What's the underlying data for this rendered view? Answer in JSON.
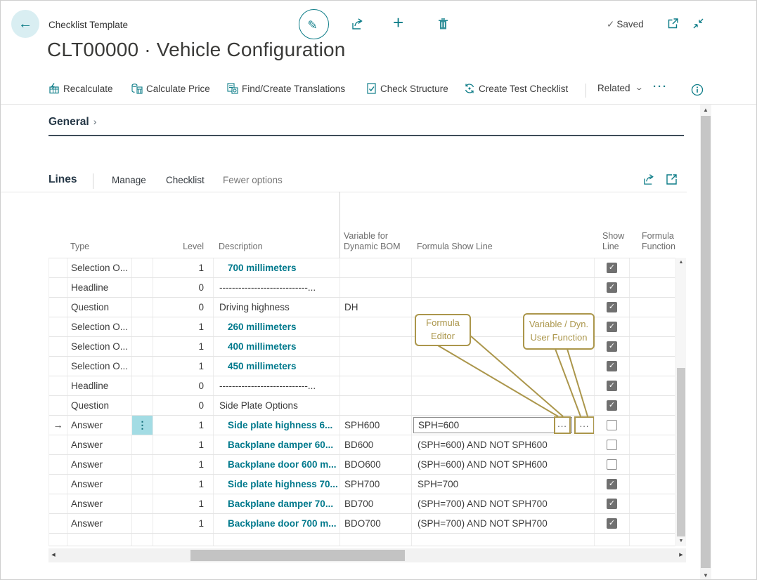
{
  "header": {
    "context": "Checklist Template",
    "title": "CLT00000 · Vehicle Configuration",
    "saved": "Saved",
    "saved_check": "✓"
  },
  "action_bar": {
    "items": [
      "Recalculate",
      "Calculate Price",
      "Find/Create Translations",
      "Check Structure",
      "Create Test Checklist"
    ],
    "related": "Related",
    "more": "···"
  },
  "general": {
    "label": "General"
  },
  "lines": {
    "title": "Lines",
    "menu": [
      "Manage",
      "Checklist"
    ],
    "fewer_options": "Fewer options"
  },
  "table": {
    "headers": {
      "type": "Type",
      "level": "Level",
      "description": "Description",
      "variable": "Variable for\nDynamic BOM",
      "formula": "Formula Show Line",
      "show": "Show\nLine",
      "function": "Formula\nFunction"
    },
    "rows": [
      {
        "type": "Selection O...",
        "level": "1",
        "desc": "700 millimeters",
        "link": true,
        "var": "",
        "formula": "",
        "show": true
      },
      {
        "type": "Headline",
        "level": "0",
        "desc": "----------------------------...",
        "link": false,
        "var": "",
        "formula": "",
        "show": true
      },
      {
        "type": "Question",
        "level": "0",
        "desc": "Driving highness",
        "link": false,
        "var": "DH",
        "formula": "",
        "show": true
      },
      {
        "type": "Selection O...",
        "level": "1",
        "desc": "260 millimeters",
        "link": true,
        "var": "",
        "formula": "",
        "show": true
      },
      {
        "type": "Selection O...",
        "level": "1",
        "desc": "400 millimeters",
        "link": true,
        "var": "",
        "formula": "",
        "show": true
      },
      {
        "type": "Selection O...",
        "level": "1",
        "desc": "450 millimeters",
        "link": true,
        "var": "",
        "formula": "",
        "show": true
      },
      {
        "type": "Headline",
        "level": "0",
        "desc": "----------------------------...",
        "link": false,
        "var": "",
        "formula": "",
        "show": true
      },
      {
        "type": "Question",
        "level": "0",
        "desc": "Side Plate Options",
        "link": false,
        "var": "",
        "formula": "",
        "show": true
      },
      {
        "type": "Answer",
        "level": "1",
        "desc": "Side plate highness 6...",
        "link": true,
        "var": "SPH600",
        "formula": "SPH=600",
        "show": false,
        "selected": true,
        "editing": true
      },
      {
        "type": "Answer",
        "level": "1",
        "desc": "Backplane damper 60...",
        "link": true,
        "var": "BD600",
        "formula": "(SPH=600) AND NOT SPH600",
        "show": false
      },
      {
        "type": "Answer",
        "level": "1",
        "desc": "Backplane door 600 m...",
        "link": true,
        "var": "BDO600",
        "formula": "(SPH=600) AND NOT SPH600",
        "show": false
      },
      {
        "type": "Answer",
        "level": "1",
        "desc": "Side plate highness 70...",
        "link": true,
        "var": "SPH700",
        "formula": "SPH=700",
        "show": true
      },
      {
        "type": "Answer",
        "level": "1",
        "desc": "Backplane damper 70...",
        "link": true,
        "var": "BD700",
        "formula": "(SPH=700) AND NOT SPH700",
        "show": true
      },
      {
        "type": "Answer",
        "level": "1",
        "desc": "Backplane door 700 m...",
        "link": true,
        "var": "BDO700",
        "formula": "(SPH=700) AND NOT SPH700",
        "show": true
      },
      {
        "empty": true
      }
    ]
  },
  "editor": {
    "value": "SPH=600",
    "assist1": "...",
    "assist2": "..."
  },
  "callouts": {
    "formula_editor": "Formula\nEditor",
    "variable_dyn": "Variable / Dyn.\nUser Function"
  },
  "colors": {
    "accent": "#0e7d88",
    "link": "#00798c",
    "gold": "#ab964b",
    "selection": "#a3dce4"
  }
}
